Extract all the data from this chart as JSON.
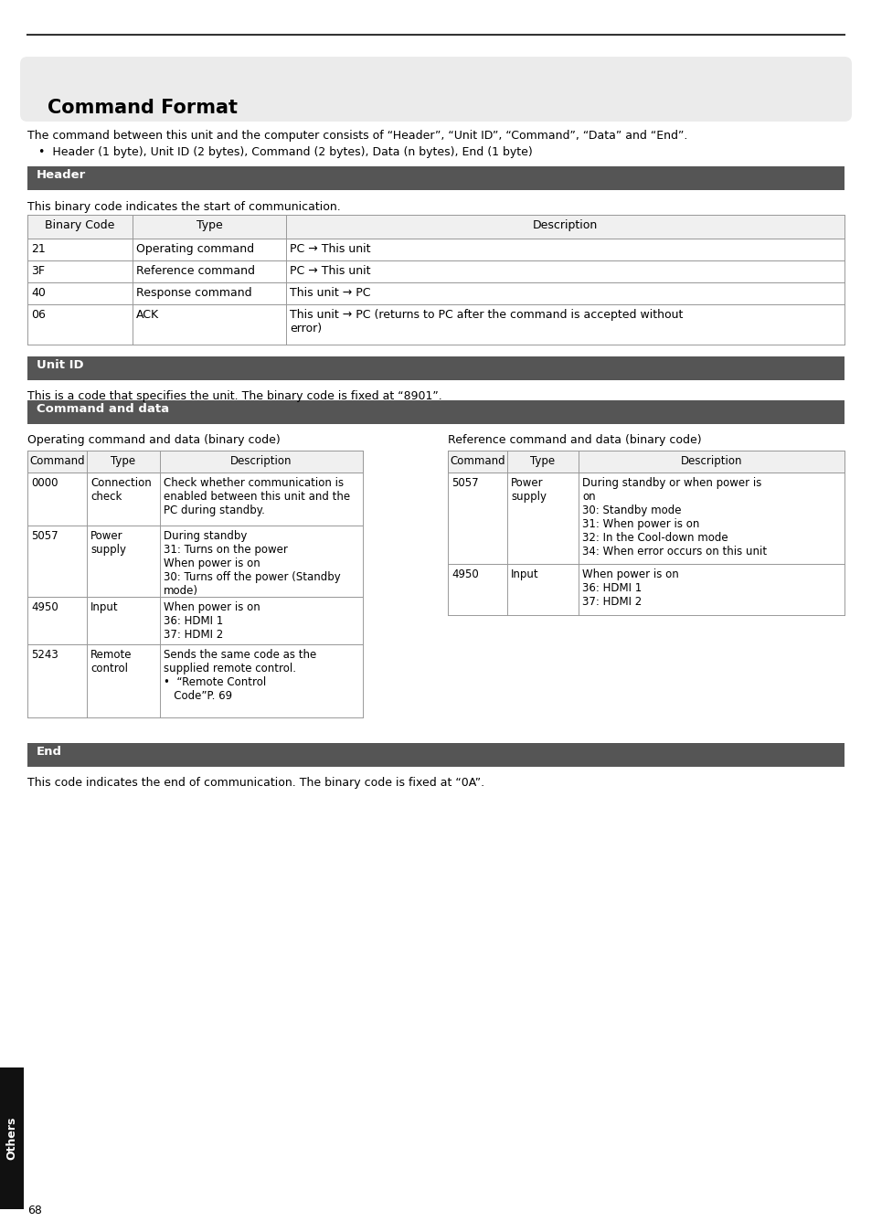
{
  "page_bg": "#ffffff",
  "top_line_color": "#333333",
  "title_box_bg": "#e8e8e8",
  "title_text": "Command Format",
  "title_fontsize": 15,
  "section_header_bg": "#555555",
  "section_header_fg": "#ffffff",
  "body_fontsize": 9,
  "small_fontsize": 8.5,
  "intro_text": "The command between this unit and the computer consists of “Header”, “Unit ID”, “Command”, “Data” and “End”.",
  "intro_bullet": "•  Header (1 byte), Unit ID (2 bytes), Command (2 bytes), Data (n bytes), End (1 byte)",
  "header_section_title": "Header",
  "header_section_desc": "This binary code indicates the start of communication.",
  "header_table_col_headers": [
    "Binary Code",
    "Type",
    "Description"
  ],
  "header_table_rows": [
    [
      "21",
      "Operating command",
      "PC → This unit"
    ],
    [
      "3F",
      "Reference command",
      "PC → This unit"
    ],
    [
      "40",
      "Response command",
      "This unit → PC"
    ],
    [
      "06",
      "ACK",
      "This unit → PC (returns to PC after the command is accepted without\nerror)"
    ]
  ],
  "unit_id_title": "Unit ID",
  "unit_id_desc": "This is a code that specifies the unit. The binary code is fixed at “8901”.",
  "cmd_data_title": "Command and data",
  "op_cmd_label": "Operating command and data (binary code)",
  "ref_cmd_label": "Reference command and data (binary code)",
  "op_table_col_headers": [
    "Command",
    "Type",
    "Description"
  ],
  "op_table_rows": [
    [
      "0000",
      "Connection\ncheck",
      "Check whether communication is\nenabled between this unit and the\nPC during standby."
    ],
    [
      "5057",
      "Power\nsupply",
      "During standby\n31: Turns on the power\nWhen power is on\n30: Turns off the power (Standby\nmode)"
    ],
    [
      "4950",
      "Input",
      "When power is on\n36: HDMI 1\n37: HDMI 2"
    ],
    [
      "5243",
      "Remote\ncontrol",
      "Sends the same code as the\nsupplied remote control.\n•  “Remote Control\n   Code”P. 69"
    ]
  ],
  "ref_table_col_headers": [
    "Command",
    "Type",
    "Description"
  ],
  "ref_table_rows": [
    [
      "5057",
      "Power\nsupply",
      "During standby or when power is\non\n30: Standby mode\n31: When power is on\n32: In the Cool-down mode\n34: When error occurs on this unit"
    ],
    [
      "4950",
      "Input",
      "When power is on\n36: HDMI 1\n37: HDMI 2"
    ]
  ],
  "end_title": "End",
  "end_desc": "This code indicates the end of communication. The binary code is fixed at “0A”.",
  "sidebar_text": "Others",
  "page_number": "68",
  "table_border_color": "#999999",
  "table_header_bg": "#f0f0f0"
}
